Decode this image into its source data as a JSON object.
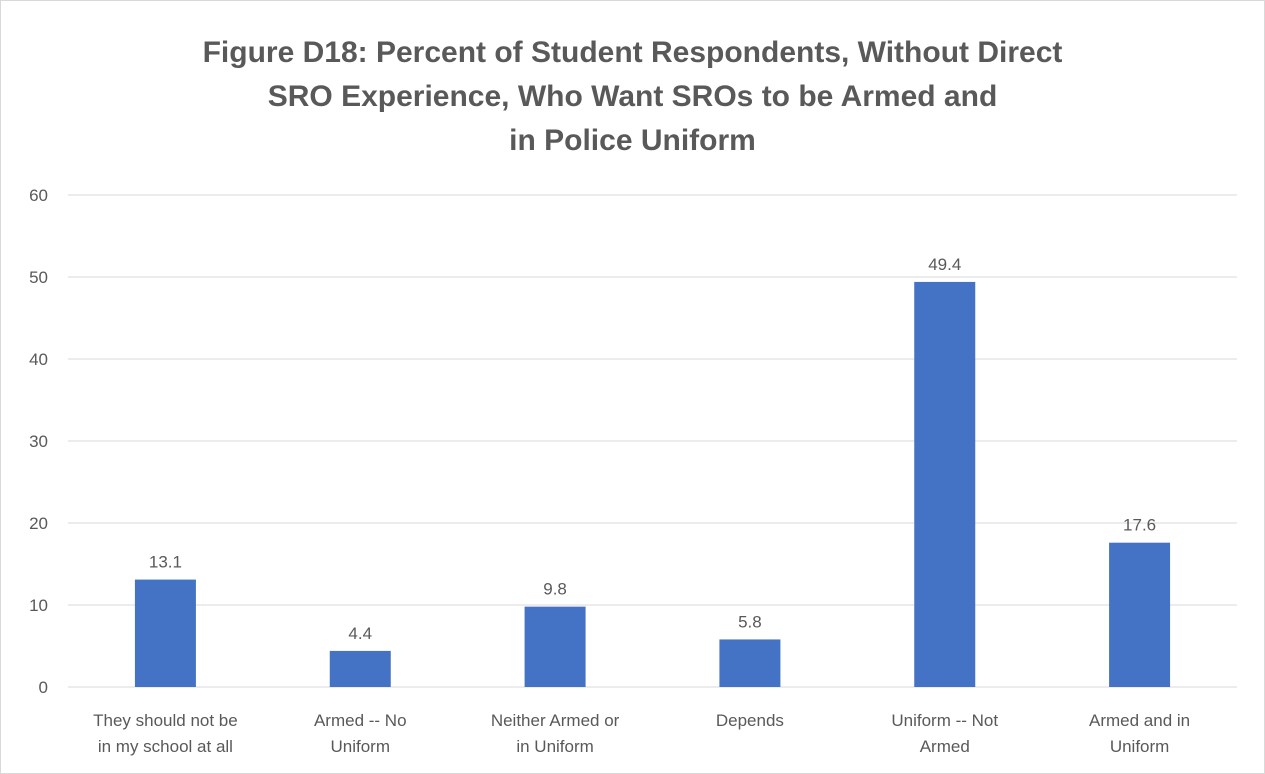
{
  "chart_data": {
    "type": "bar",
    "title_lines": [
      "Figure D18: Percent of Student Respondents, Without Direct",
      "SRO Experience, Who Want SROs to be Armed and",
      "in Police Uniform"
    ],
    "categories": [
      [
        "They should not be",
        "in my school at all"
      ],
      [
        "Armed -- No",
        "Uniform"
      ],
      [
        "Neither Armed or",
        "in Uniform"
      ],
      [
        "Depends"
      ],
      [
        "Uniform -- Not",
        "Armed"
      ],
      [
        "Armed and in",
        "Uniform"
      ]
    ],
    "values": [
      13.1,
      4.4,
      9.8,
      5.8,
      49.4,
      17.6
    ],
    "data_labels": [
      "13.1",
      "4.4",
      "9.8",
      "5.8",
      "49.4",
      "17.6"
    ],
    "ylim": [
      0,
      60
    ],
    "yticks": [
      0,
      10,
      20,
      30,
      40,
      50,
      60
    ],
    "grid": true,
    "legend": "none",
    "bar_color": "#4472c4",
    "grid_color": "#d9d9d9",
    "text_color": "#595959"
  }
}
